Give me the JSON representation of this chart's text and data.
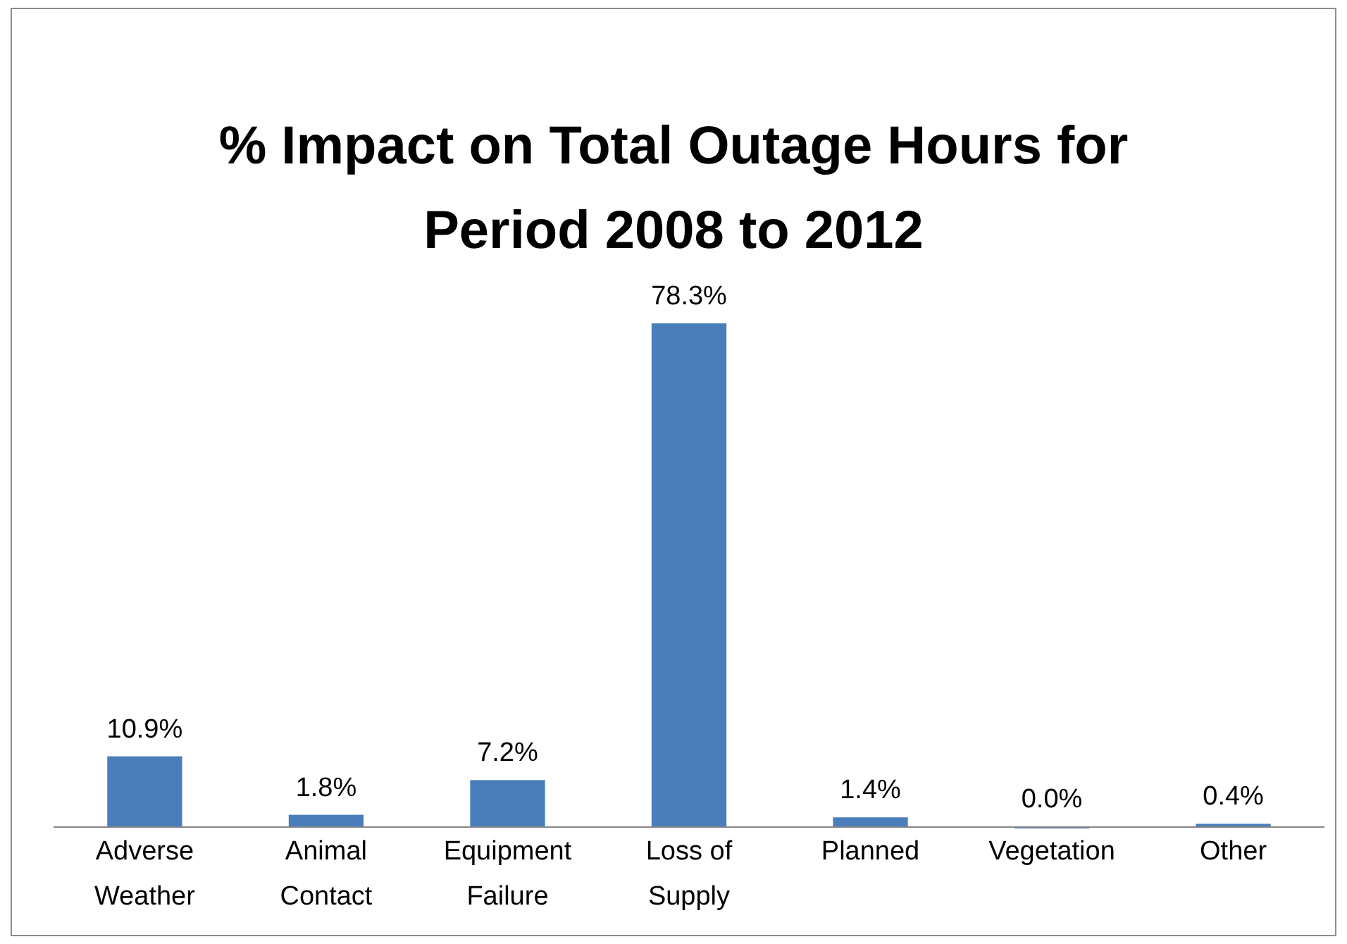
{
  "chart_data": {
    "type": "bar",
    "title": "% Impact on Total Outage Hours for Period 2008 to 2012",
    "categories": [
      "Adverse Weather",
      "Animal Contact",
      "Equipment Failure",
      "Loss of Supply",
      "Planned",
      "Vegetation",
      "Other"
    ],
    "values": [
      10.9,
      1.8,
      7.2,
      78.3,
      1.4,
      0.0,
      0.4
    ],
    "value_labels": [
      "10.9%",
      "1.8%",
      "7.2%",
      "78.3%",
      "1.4%",
      "0.0%",
      "0.4%"
    ],
    "color": "#4a7ebb"
  }
}
